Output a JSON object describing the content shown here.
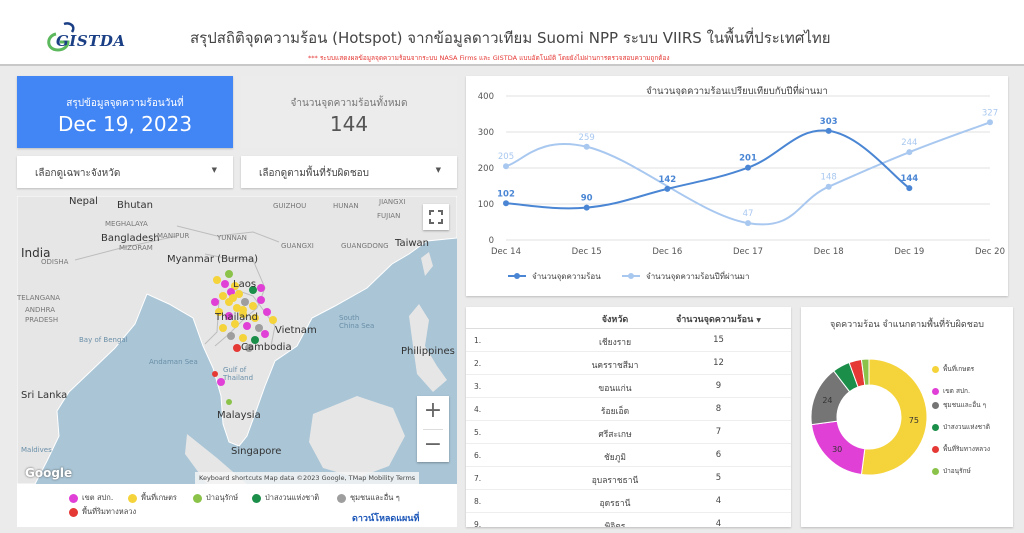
{
  "header": {
    "logo_text": "GISTDA",
    "title": "สรุปสถิติจุดความร้อน (Hotspot) จากข้อมูลดาวเทียม Suomi NPP ระบบ VIIRS  ในพื้นที่ประเทศไทย",
    "subtitle": "*** ระบบแสดงผลข้อมูลจุดความร้อนจากระบบ NASA Firms และ GISTDA แบบอัตโนมัติ โดยยังไม่ผ่านการตรวจสอบความถูกต้อง"
  },
  "summary": {
    "label": "สรุปข้อมูลจุดความร้อนวันที่",
    "date": "Dec 19, 2023"
  },
  "total": {
    "label": "จำนวนจุดความร้อนทั้งหมด",
    "value": "144"
  },
  "filters": {
    "province": "เลือกดูเฉพาะจังหวัด",
    "area": "เลือกดูตามพื้นที่รับผิดชอบ"
  },
  "map": {
    "labels": {
      "nepal": "Nepal",
      "bhutan": "Bhutan",
      "bangladesh": "Bangladesh",
      "india": "India",
      "myanmar": "Myanmar\n(Burma)",
      "laos": "Laos",
      "thailand": "Thailand",
      "vietnam": "Vietnam",
      "cambodia": "Cambodia",
      "taiwan": "Taiwan",
      "philippines": "Philippines",
      "malaysia": "Malaysia",
      "singapore": "Singapore",
      "srilanka": "Sri Lanka",
      "guizhou": "GUIZHOU",
      "hunan": "HUNAN",
      "jiangxi": "JIANGXI",
      "fujian": "FUJIAN",
      "yunnan": "YUNNAN",
      "guangxi": "GUANGXI",
      "guangdong": "GUANGDONG",
      "meghalaya": "MEGHALAYA",
      "manipur": "MANIPUR",
      "mizoram": "MIZORAM",
      "odisha": "ODISHA",
      "telangana": "TELANGANA",
      "andhra": "ANDHRA",
      "pradesh": "PRADESH",
      "bay_of_bengal": "Bay of Bengal",
      "andaman_sea": "Andaman Sea",
      "south_china_sea": "South\nChina Sea",
      "gulf_of_thailand": "Gulf of\nThailand",
      "maldives": "Maldives"
    },
    "google": "Google",
    "attribution": "Keyboard shortcuts   Map data ©2023 Google, TMap Mobility   Terms",
    "zoom_in": "+",
    "zoom_out": "−",
    "legend": [
      {
        "label": "เขต สปก.",
        "color": "#e040d6"
      },
      {
        "label": "พื้นที่เกษตร",
        "color": "#f5d33a"
      },
      {
        "label": "ป่าอนุรักษ์",
        "color": "#8bc34a"
      },
      {
        "label": "ป่าสงวนแห่งชาติ",
        "color": "#1b8f4a"
      },
      {
        "label": "ชุมชนและอื่น ๆ",
        "color": "#9e9e9e"
      },
      {
        "label": "พื้นที่ริมทางหลวง",
        "color": "#e53935"
      }
    ],
    "download": "ดาวน์โหลดแผนที่"
  },
  "chart_data": [
    {
      "type": "line",
      "title": "จำนวนจุดความร้อนเปรียบเทียบกับปีที่ผ่านมา",
      "categories": [
        "Dec 14",
        "Dec 15",
        "Dec 16",
        "Dec 17",
        "Dec 18",
        "Dec 19",
        "Dec 20"
      ],
      "series": [
        {
          "name": "จำนวนจุดความร้อน",
          "color": "#4a86d4",
          "values": [
            102,
            90,
            142,
            201,
            303,
            144,
            null
          ]
        },
        {
          "name": "จำนวนจุดความร้อนปีที่ผ่านมา",
          "color": "#a9c8f0",
          "values": [
            205,
            259,
            null,
            47,
            148,
            244,
            327
          ]
        }
      ],
      "ylim": [
        0,
        400
      ],
      "yticks": [
        0,
        100,
        200,
        300,
        400
      ],
      "grid": true,
      "legend_position": "bottom-left"
    },
    {
      "type": "pie",
      "title": "จุดความร้อน จำแนกตามพื้นที่รับผิดชอบ",
      "slices": [
        {
          "label": "พื้นที่เกษตร",
          "value": 75,
          "color": "#f5d33a"
        },
        {
          "label": "เขต สปก.",
          "value": 30,
          "color": "#e040d6"
        },
        {
          "label": "ชุมชนและอื่น ๆ",
          "value": 24,
          "color": "#757575"
        },
        {
          "label": "ป่าสงวนแห่งชาติ",
          "value": 7,
          "color": "#1b8f4a"
        },
        {
          "label": "พื้นที่ริมทางหลวง",
          "value": 5,
          "color": "#e53935"
        },
        {
          "label": "ป่าอนุรักษ์",
          "value": 3,
          "color": "#8bc34a"
        }
      ],
      "legend_position": "right"
    },
    {
      "type": "table",
      "columns": [
        "จังหวัด",
        "จำนวนจุดความร้อน"
      ],
      "rows": [
        {
          "n": "1.",
          "province": "เชียงราย",
          "count": "15"
        },
        {
          "n": "2.",
          "province": "นครราชสีมา",
          "count": "12"
        },
        {
          "n": "3.",
          "province": "ขอนแก่น",
          "count": "9"
        },
        {
          "n": "4.",
          "province": "ร้อยเอ็ด",
          "count": "8"
        },
        {
          "n": "5.",
          "province": "ศรีสะเกษ",
          "count": "7"
        },
        {
          "n": "6.",
          "province": "ชัยภูมิ",
          "count": "6"
        },
        {
          "n": "7.",
          "province": "อุบลราชธานี",
          "count": "5"
        },
        {
          "n": "8.",
          "province": "อุดรธานี",
          "count": "4"
        },
        {
          "n": "9.",
          "province": "พิจิตร",
          "count": "4"
        }
      ]
    }
  ],
  "table": {
    "col_province": "จังหวัด",
    "col_count": "จำนวนจุดความร้อน",
    "sort_icon": "caret-down-icon"
  }
}
